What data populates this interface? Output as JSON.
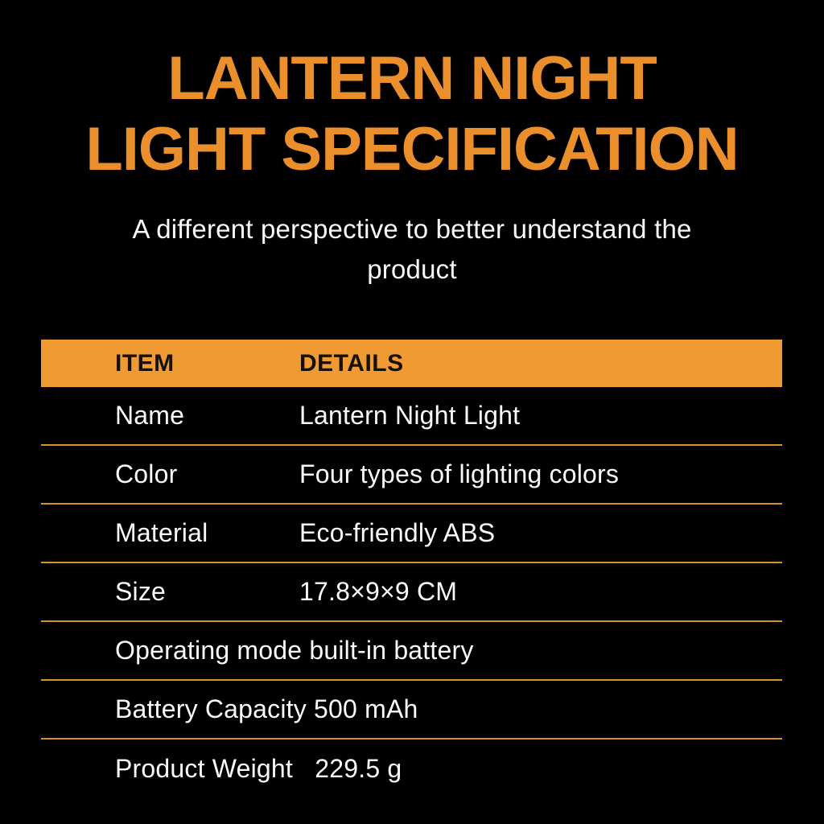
{
  "page": {
    "background_color": "#000000"
  },
  "header": {
    "title_line1": "LANTERN NIGHT",
    "title_line2": "LIGHT SPECIFICATION",
    "title_color": "#EA8F2B",
    "subtitle": "A different perspective to better understand the product"
  },
  "table": {
    "header": {
      "item_label": "ITEM",
      "details_label": "DETAILS",
      "background_color": "#EF9A33",
      "text_color": "#161007"
    },
    "divider_color": "#D79129",
    "rows": [
      {
        "type": "two-col",
        "label": "Name",
        "value": "Lantern Night Light"
      },
      {
        "type": "two-col",
        "label": "Color",
        "value": "Four types of lighting colors"
      },
      {
        "type": "two-col",
        "label": "Material",
        "value": "Eco-friendly ABS"
      },
      {
        "type": "two-col",
        "label": "Size",
        "value": "17.8×9×9 CM"
      },
      {
        "type": "full",
        "text": "Operating mode built-in battery"
      },
      {
        "type": "full",
        "text": "Battery Capacity 500 mAh"
      },
      {
        "type": "full",
        "text": "Product Weight   229.5 g"
      }
    ]
  }
}
